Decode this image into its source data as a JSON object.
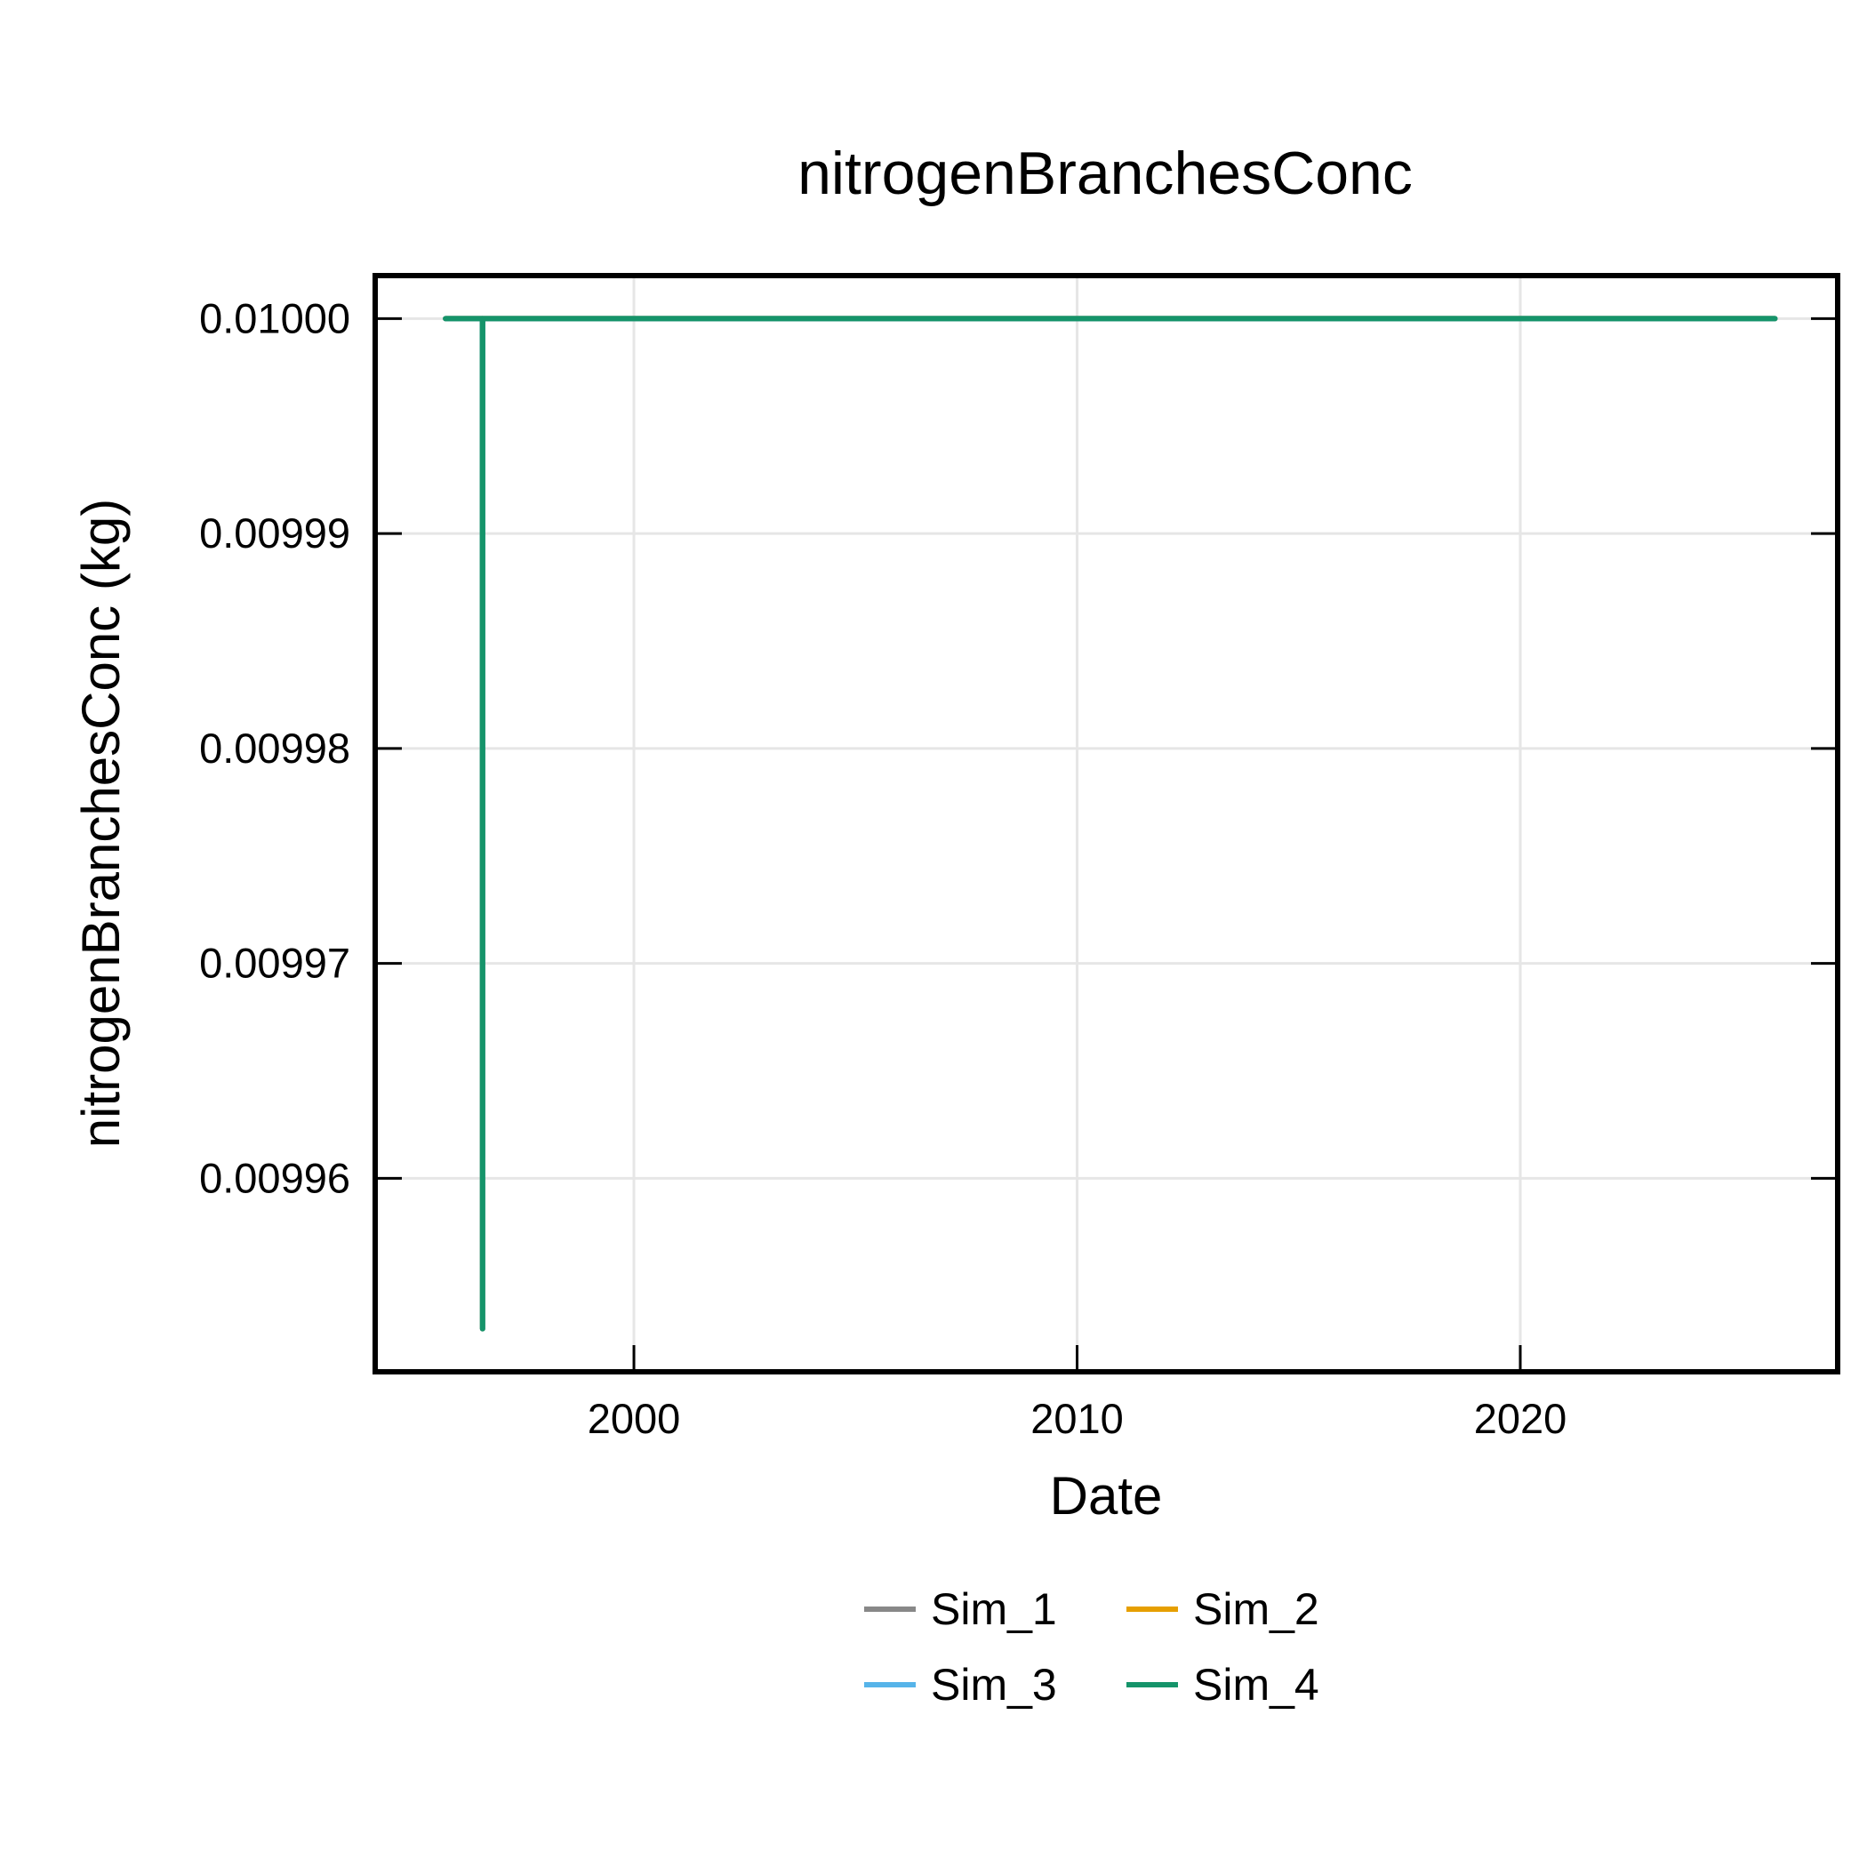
{
  "chart_data": {
    "type": "line",
    "title": "nitrogenBranchesConc",
    "xlabel": "Date",
    "ylabel": "nitrogenBranchesConc (kg)",
    "x_ticks": [
      "2000",
      "2010",
      "2020"
    ],
    "y_ticks": [
      "0.01000",
      "0.00999",
      "0.00998",
      "0.00997",
      "0.00996"
    ],
    "xlim": [
      "1994-03-01",
      "2027-03-01"
    ],
    "ylim": [
      0.009951,
      0.010002
    ],
    "grid": true,
    "legend_placement": "bottom-center",
    "series": [
      {
        "name": "Sim_1",
        "color": "#888888",
        "x": [
          "1995-10-01",
          "1996-08-01",
          "1996-08-02",
          "1996-08-03",
          "2025-10-01"
        ],
        "y": [
          0.01,
          0.01,
          0.009953,
          0.01,
          0.01
        ]
      },
      {
        "name": "Sim_2",
        "color": "#e69f00",
        "x": [
          "1995-10-01",
          "1996-08-01",
          "1996-08-02",
          "1996-08-03",
          "2025-10-01"
        ],
        "y": [
          0.01,
          0.01,
          0.009953,
          0.01,
          0.01
        ]
      },
      {
        "name": "Sim_3",
        "color": "#56b4e9",
        "x": [
          "1995-10-01",
          "1996-08-01",
          "1996-08-02",
          "1996-08-03",
          "2025-10-01"
        ],
        "y": [
          0.01,
          0.01,
          0.009953,
          0.01,
          0.01
        ]
      },
      {
        "name": "Sim_4",
        "color": "#15946a",
        "x": [
          "1995-10-01",
          "1996-08-01",
          "1996-08-02",
          "1996-08-03",
          "2025-10-01"
        ],
        "y": [
          0.01,
          0.01,
          0.009953,
          0.01,
          0.01
        ]
      }
    ]
  }
}
